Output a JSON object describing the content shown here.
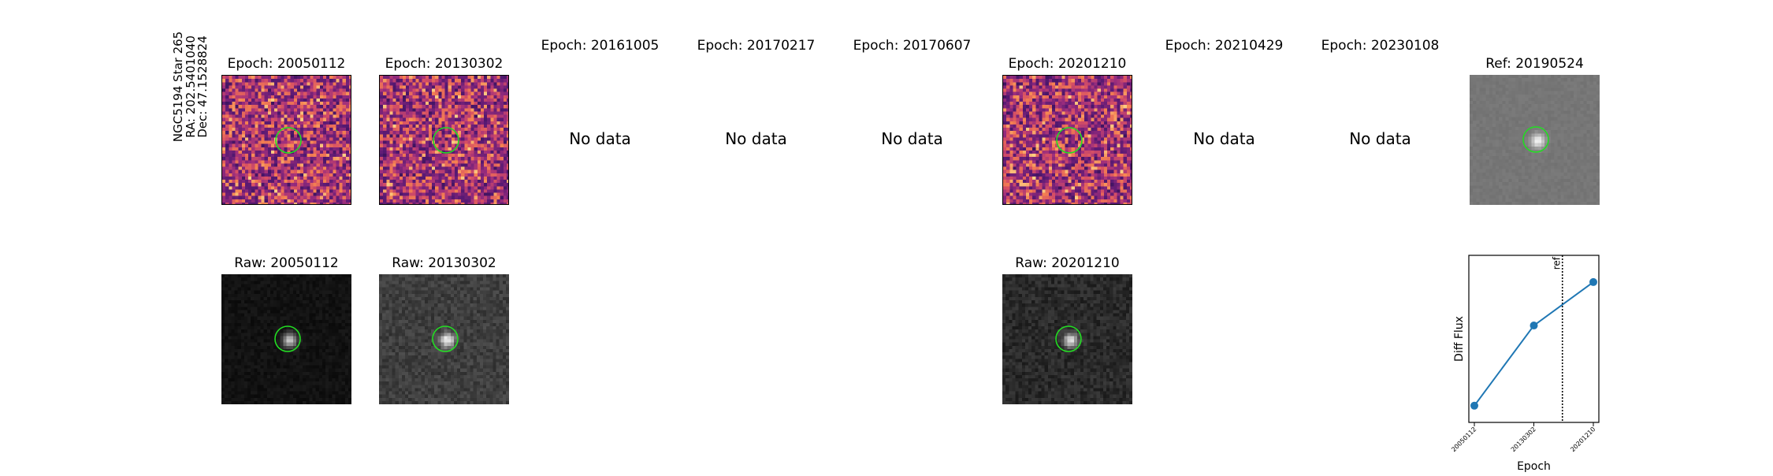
{
  "row_label": [
    "NGC5194 Star 265",
    "RA: 202.5401040",
    "Dec: 47.1528824"
  ],
  "epochs": [
    {
      "title": "Epoch: 20050112",
      "has_data": true,
      "raw_title": "Raw: 20050112"
    },
    {
      "title": "Epoch: 20130302",
      "has_data": true,
      "raw_title": "Raw: 20130302"
    },
    {
      "title": "Epoch: 20161005",
      "has_data": false
    },
    {
      "title": "Epoch: 20170217",
      "has_data": false
    },
    {
      "title": "Epoch: 20170607",
      "has_data": false
    },
    {
      "title": "Epoch: 20201210",
      "has_data": true,
      "raw_title": "Raw: 20201210"
    },
    {
      "title": "Epoch: 20210429",
      "has_data": false
    },
    {
      "title": "Epoch: 20230108",
      "has_data": false
    }
  ],
  "no_data_text": "No data",
  "reference": {
    "title": "Ref: 20190524"
  },
  "colors": {
    "aperture": "#22dd22",
    "line": "#1f77b4",
    "marker": "#1f77b4"
  },
  "chart_data": {
    "type": "line",
    "xlabel": "Epoch",
    "ylabel": "Diff Flux",
    "categories": [
      "20050112",
      "20130302",
      "20201210"
    ],
    "values": [
      0.1,
      0.58,
      0.84
    ],
    "ylim": [
      0,
      1
    ],
    "ref_line": {
      "label": "ref",
      "position_between": [
        "20130302",
        "20201210"
      ]
    },
    "grid": false
  }
}
